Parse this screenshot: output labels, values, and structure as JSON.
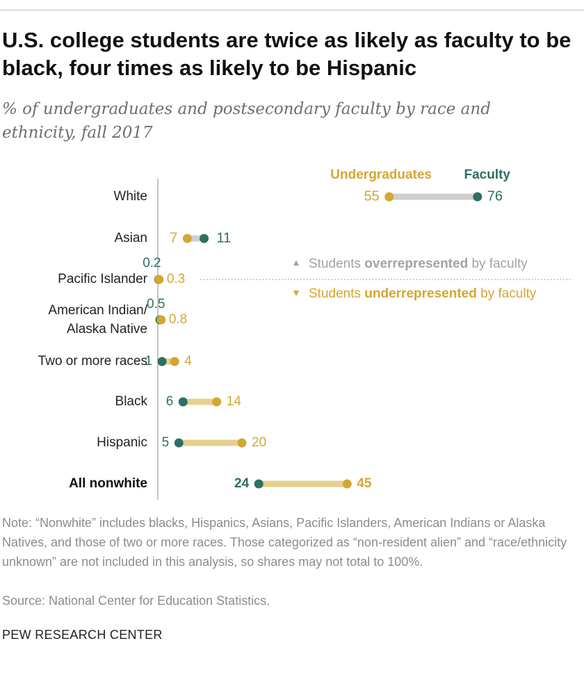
{
  "header": {
    "title": "U.S. college students are twice as likely as faculty to be black, four times as likely to be Hispanic",
    "subtitle": "% of undergraduates and postsecondary faculty by race and ethnicity, fall 2017"
  },
  "chart_data": {
    "type": "dumbbell",
    "title": "U.S. college students are twice as likely as faculty to be black, four times as likely to be Hispanic",
    "subtitle": "% of undergraduates and postsecondary faculty by race and ethnicity, fall 2017",
    "units": "%",
    "xlim": [
      0,
      100
    ],
    "series": [
      {
        "name": "Undergraduates",
        "color": "#d4a633"
      },
      {
        "name": "Faculty",
        "color": "#2e6e63"
      }
    ],
    "categories": [
      "White",
      "Asian",
      "Pacific Islander",
      "American Indian/\nAlaska Native",
      "Two or more races",
      "Black",
      "Hispanic",
      "All nonwhite"
    ],
    "rows": [
      {
        "category": "White",
        "undergraduates": 55,
        "faculty": 76,
        "undergrad_label": "55",
        "faculty_label": "76",
        "bold": false
      },
      {
        "category": "Asian",
        "undergraduates": 7,
        "faculty": 11,
        "undergrad_label": "7",
        "faculty_label": "11",
        "bold": false
      },
      {
        "category": "Pacific Islander",
        "undergraduates": 0.3,
        "faculty": 0.2,
        "undergrad_label": "0.3",
        "faculty_label": "0.2",
        "bold": false
      },
      {
        "category": "American Indian/\nAlaska Native",
        "undergraduates": 0.8,
        "faculty": 0.5,
        "undergrad_label": "0.8",
        "faculty_label": "0.5",
        "bold": false
      },
      {
        "category": "Two or more races",
        "undergraduates": 4,
        "faculty": 1,
        "undergrad_label": "4",
        "faculty_label": "1",
        "bold": false
      },
      {
        "category": "Black",
        "undergraduates": 14,
        "faculty": 6,
        "undergrad_label": "14",
        "faculty_label": "6",
        "bold": false
      },
      {
        "category": "Hispanic",
        "undergraduates": 20,
        "faculty": 5,
        "undergrad_label": "20",
        "faculty_label": "5",
        "bold": false
      },
      {
        "category": "All nonwhite",
        "undergraduates": 45,
        "faculty": 24,
        "undergrad_label": "45",
        "faculty_label": "24",
        "bold": true
      }
    ],
    "legend": {
      "undergraduates": "Undergraduates",
      "faculty": "Faculty"
    },
    "annotations": {
      "over_prefix": "Students ",
      "over_bold": "overrepresented",
      "over_suffix": " by faculty",
      "under_prefix": "Students ",
      "under_bold": "underrepresented",
      "under_suffix": " by faculty"
    },
    "colors": {
      "undergrad_bar": "#e6d08e",
      "faculty_bar": "#cfcfcf",
      "axis": "#888888",
      "muted": "#a3a3a3"
    }
  },
  "footer": {
    "note": "Note: “Nonwhite” includes blacks, Hispanics, Asians, Pacific Islanders, American Indians or Alaska Natives, and those of two or more races. Those categorized as “non-resident alien” and “race/ethnicity unknown” are not included in this analysis, so shares may not total to 100%.",
    "source": "Source: National Center for Education Statistics.",
    "credit": "PEW RESEARCH CENTER"
  }
}
